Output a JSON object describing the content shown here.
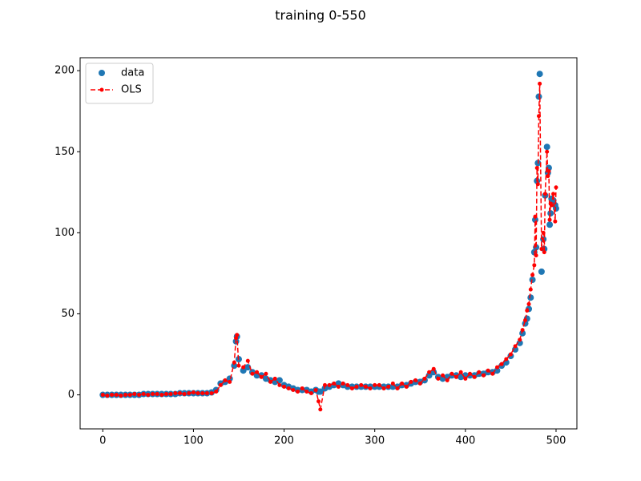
{
  "chart_data": {
    "type": "line",
    "title": "training 0-550",
    "x": [
      0,
      5,
      10,
      15,
      20,
      25,
      30,
      35,
      40,
      45,
      50,
      55,
      60,
      65,
      70,
      75,
      80,
      85,
      90,
      95,
      100,
      105,
      110,
      115,
      120,
      125,
      130,
      135,
      140,
      145,
      147,
      148,
      150,
      155,
      160,
      165,
      170,
      175,
      180,
      185,
      190,
      195,
      200,
      205,
      210,
      215,
      220,
      225,
      230,
      235,
      238,
      240,
      245,
      250,
      255,
      260,
      265,
      270,
      275,
      280,
      285,
      290,
      295,
      300,
      305,
      310,
      315,
      320,
      325,
      330,
      335,
      340,
      345,
      350,
      355,
      360,
      365,
      370,
      375,
      380,
      385,
      390,
      395,
      400,
      405,
      410,
      415,
      420,
      425,
      430,
      435,
      440,
      445,
      450,
      455,
      460,
      463,
      466,
      468,
      470,
      472,
      474,
      476,
      477,
      478,
      479,
      480,
      481,
      482,
      484,
      486,
      487,
      488,
      490,
      491,
      492,
      493,
      494,
      495,
      497,
      499,
      500
    ],
    "series": [
      {
        "name": "data",
        "color": "#1f77b4",
        "linestyle": "none",
        "marker": "o",
        "values": [
          0,
          0,
          0,
          0,
          0,
          0,
          0,
          0,
          0,
          0.5,
          0.5,
          0.5,
          0.5,
          0.5,
          0.5,
          0.5,
          0.5,
          1,
          1,
          1,
          1,
          1,
          1,
          1,
          1.5,
          3,
          7,
          8,
          10,
          18,
          33,
          36,
          22,
          15,
          17,
          14,
          12,
          12,
          10,
          9,
          8,
          9,
          6,
          5,
          4,
          3,
          3,
          3,
          2,
          3,
          2,
          2,
          4,
          5,
          6,
          7,
          6,
          5,
          5,
          5,
          5,
          5,
          5,
          5,
          5,
          5,
          5,
          5,
          5,
          6,
          6,
          7,
          8,
          8,
          9,
          12,
          14,
          11,
          10,
          11,
          12,
          12,
          11,
          12,
          12,
          12,
          13,
          13,
          14,
          14,
          15,
          18,
          20,
          24,
          28,
          32,
          38,
          44,
          47,
          53,
          60,
          71,
          88,
          108,
          91,
          132,
          143,
          184,
          198,
          76,
          96,
          90,
          123,
          153,
          137,
          140,
          105,
          112,
          121,
          120,
          117,
          115
        ]
      },
      {
        "name": "OLS",
        "color": "#ff0000",
        "linestyle": "--",
        "marker": ".",
        "values": [
          0,
          -0.5,
          0,
          0,
          -0.5,
          0,
          0,
          0.5,
          0,
          0.5,
          0,
          0.5,
          0.5,
          0,
          0.5,
          0.5,
          1,
          1,
          0.5,
          1,
          1.5,
          1,
          1,
          1,
          1,
          2,
          6,
          9,
          8,
          20,
          35,
          37,
          18,
          17,
          21,
          13,
          14,
          11,
          13,
          8,
          10,
          6,
          5,
          4,
          3,
          2,
          4,
          2,
          1,
          3,
          -4,
          -9,
          6,
          6,
          7,
          5,
          7,
          6,
          4,
          5,
          6,
          5,
          4,
          6,
          6,
          4,
          5,
          7,
          4,
          7,
          5,
          8,
          9,
          7,
          10,
          14,
          16,
          10,
          12,
          9,
          13,
          11,
          14,
          10,
          13,
          11,
          14,
          12,
          15,
          13,
          17,
          19,
          22,
          25,
          30,
          34,
          40,
          46,
          52,
          56,
          65,
          74,
          80,
          110,
          86,
          140,
          130,
          172,
          192,
          90,
          100,
          88,
          124,
          150,
          135,
          138,
          108,
          118,
          117,
          124,
          107,
          128
        ]
      }
    ],
    "xlim": [
      -25,
      523
    ],
    "ylim": [
      -21,
      208
    ],
    "xticks": [
      0,
      100,
      200,
      300,
      400,
      500
    ],
    "yticks": [
      0,
      50,
      100,
      150,
      200
    ],
    "grid": false,
    "legend": "upper left"
  }
}
